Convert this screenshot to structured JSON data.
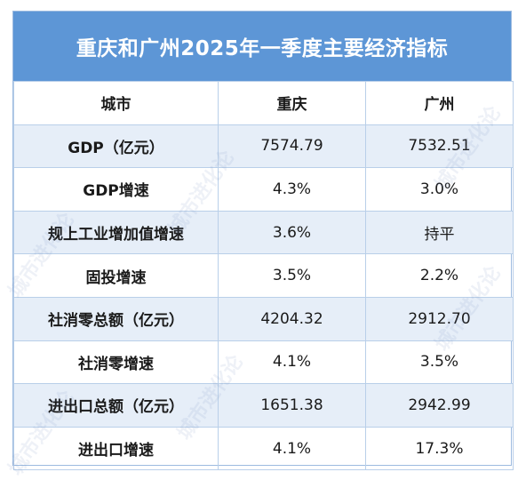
{
  "title": "重庆和广州2025年一季度主要经济指标",
  "headers": [
    "城市",
    "重庆",
    "广州"
  ],
  "rows": [
    {
      "label": "GDP（亿元）",
      "chongqing": "7574.79",
      "guangzhou": "7532.51"
    },
    {
      "label": "GDP增速",
      "chongqing": "4.3%",
      "guangzhou": "3.0%"
    },
    {
      "label": "规上工业增加值增速",
      "chongqing": "3.6%",
      "guangzhou": "持平"
    },
    {
      "label": "固投增速",
      "chongqing": "3.5%",
      "guangzhou": "2.2%"
    },
    {
      "label": "社消零总额（亿元）",
      "chongqing": "4204.32",
      "guangzhou": "2912.70"
    },
    {
      "label": "社消零增速",
      "chongqing": "4.1%",
      "guangzhou": "3.5%"
    },
    {
      "label": "进出口总额（亿元）",
      "chongqing": "1651.38",
      "guangzhou": "2942.99"
    },
    {
      "label": "进出口增速",
      "chongqing": "4.1%",
      "guangzhou": "17.3%"
    }
  ],
  "watermark": "城市进化论"
}
